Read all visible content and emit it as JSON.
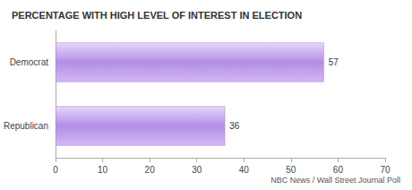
{
  "chart_data": {
    "type": "bar",
    "orientation": "horizontal",
    "title": "PERCENTAGE WITH HIGH LEVEL OF INTEREST IN ELECTION",
    "annotation": "NBC News / Wall Street Journal Poll",
    "categories": [
      "Democrat",
      "Republican"
    ],
    "values": [
      57,
      36
    ],
    "color": "#b48ee6",
    "xlim": [
      0,
      70
    ],
    "xticks": [
      0,
      10,
      20,
      30,
      40,
      50,
      60,
      70
    ],
    "grid": false,
    "data_labels": true
  }
}
